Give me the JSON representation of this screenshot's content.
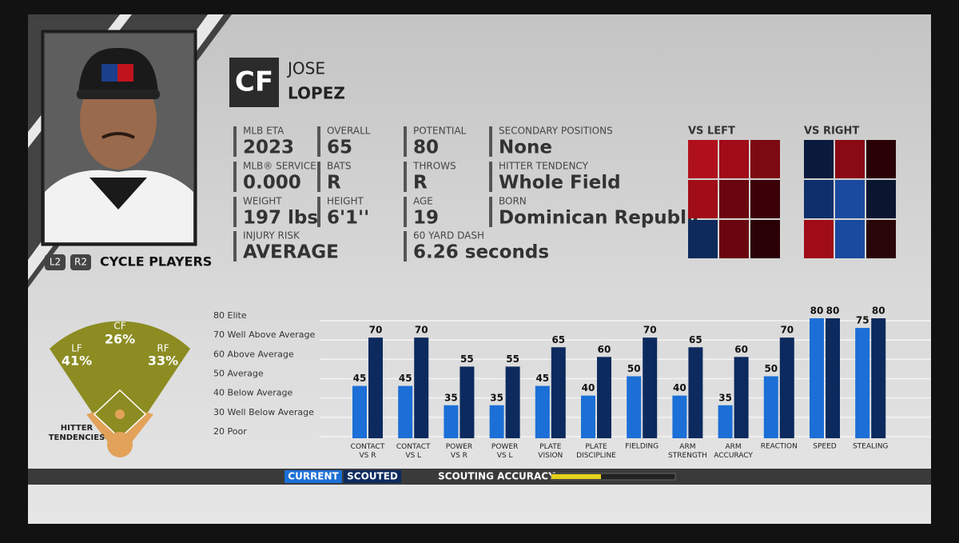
{
  "player": {
    "position": "CF",
    "first_name": "JOSE",
    "last_name": "LOPEZ"
  },
  "controls": {
    "left": "L2",
    "right": "R2",
    "label": "CYCLE PLAYERS"
  },
  "info": [
    {
      "label": "MLB ETA",
      "value": "2023"
    },
    {
      "label": "OVERALL",
      "value": "65"
    },
    {
      "label": "POTENTIAL",
      "value": "80"
    },
    {
      "label": "SECONDARY POSITIONS",
      "value": "None"
    },
    {
      "label": "MLB® SERVICE",
      "value": "0.000"
    },
    {
      "label": "BATS",
      "value": "R"
    },
    {
      "label": "THROWS",
      "value": "R"
    },
    {
      "label": "HITTER TENDENCY",
      "value": "Whole Field"
    },
    {
      "label": "WEIGHT",
      "value": "197 lbs"
    },
    {
      "label": "HEIGHT",
      "value": "6'1''"
    },
    {
      "label": "AGE",
      "value": "19"
    },
    {
      "label": "BORN",
      "value": "Dominican Republic"
    },
    {
      "label": "INJURY RISK",
      "value": "AVERAGE"
    },
    {
      "label": "60 YARD DASH",
      "value": "6.26 seconds"
    }
  ],
  "hot_zones": [
    {
      "title": "VS LEFT",
      "colors": [
        "#b0101c",
        "#a00c18",
        "#7c0a12",
        "#a00c18",
        "#6a0610",
        "#3a0208",
        "#0e2a5c",
        "#6a0610",
        "#2a0206"
      ]
    },
    {
      "title": "VS RIGHT",
      "colors": [
        "#0a1a3c",
        "#8a0a14",
        "#2a0206",
        "#0e2e6c",
        "#1a4aa0",
        "#0a1630",
        "#a00c18",
        "#1a4aa0",
        "#2a0608"
      ]
    }
  ],
  "spray": {
    "title": "HITTER TENDENCIES",
    "fields": [
      {
        "name": "LF",
        "pct": "41%"
      },
      {
        "name": "CF",
        "pct": "26%"
      },
      {
        "name": "RF",
        "pct": "33%"
      }
    ]
  },
  "chart_data": {
    "type": "bar",
    "categories": [
      "CONTACT VS R",
      "CONTACT VS L",
      "POWER VS R",
      "POWER VS L",
      "PLATE VISION",
      "PLATE DISCIPLINE",
      "FIELDING",
      "ARM STRENGTH",
      "ARM ACCURACY",
      "REACTION",
      "SPEED",
      "STEALING"
    ],
    "series": [
      {
        "name": "CURRENT",
        "color": "#1b6fd6",
        "values": [
          45,
          45,
          35,
          35,
          45,
          40,
          50,
          40,
          35,
          50,
          80,
          75
        ]
      },
      {
        "name": "SCOUTED",
        "color": "#0c2a5e",
        "values": [
          70,
          70,
          55,
          55,
          65,
          60,
          70,
          65,
          60,
          70,
          80,
          80
        ]
      }
    ],
    "ylim": [
      20,
      80
    ],
    "yticks": [
      {
        "value": 80,
        "label": "80 Elite"
      },
      {
        "value": 70,
        "label": "70 Well Above Average"
      },
      {
        "value": 60,
        "label": "60 Above Average"
      },
      {
        "value": 50,
        "label": "50 Average"
      },
      {
        "value": 40,
        "label": "40 Below Average"
      },
      {
        "value": 30,
        "label": "30 Well Below Average"
      },
      {
        "value": 20,
        "label": "20 Poor"
      }
    ],
    "grid": true
  },
  "scouting_accuracy": {
    "label": "SCOUTING ACCURACY",
    "value": 40,
    "range": [
      0,
      100
    ],
    "color": "#e6d21a"
  }
}
